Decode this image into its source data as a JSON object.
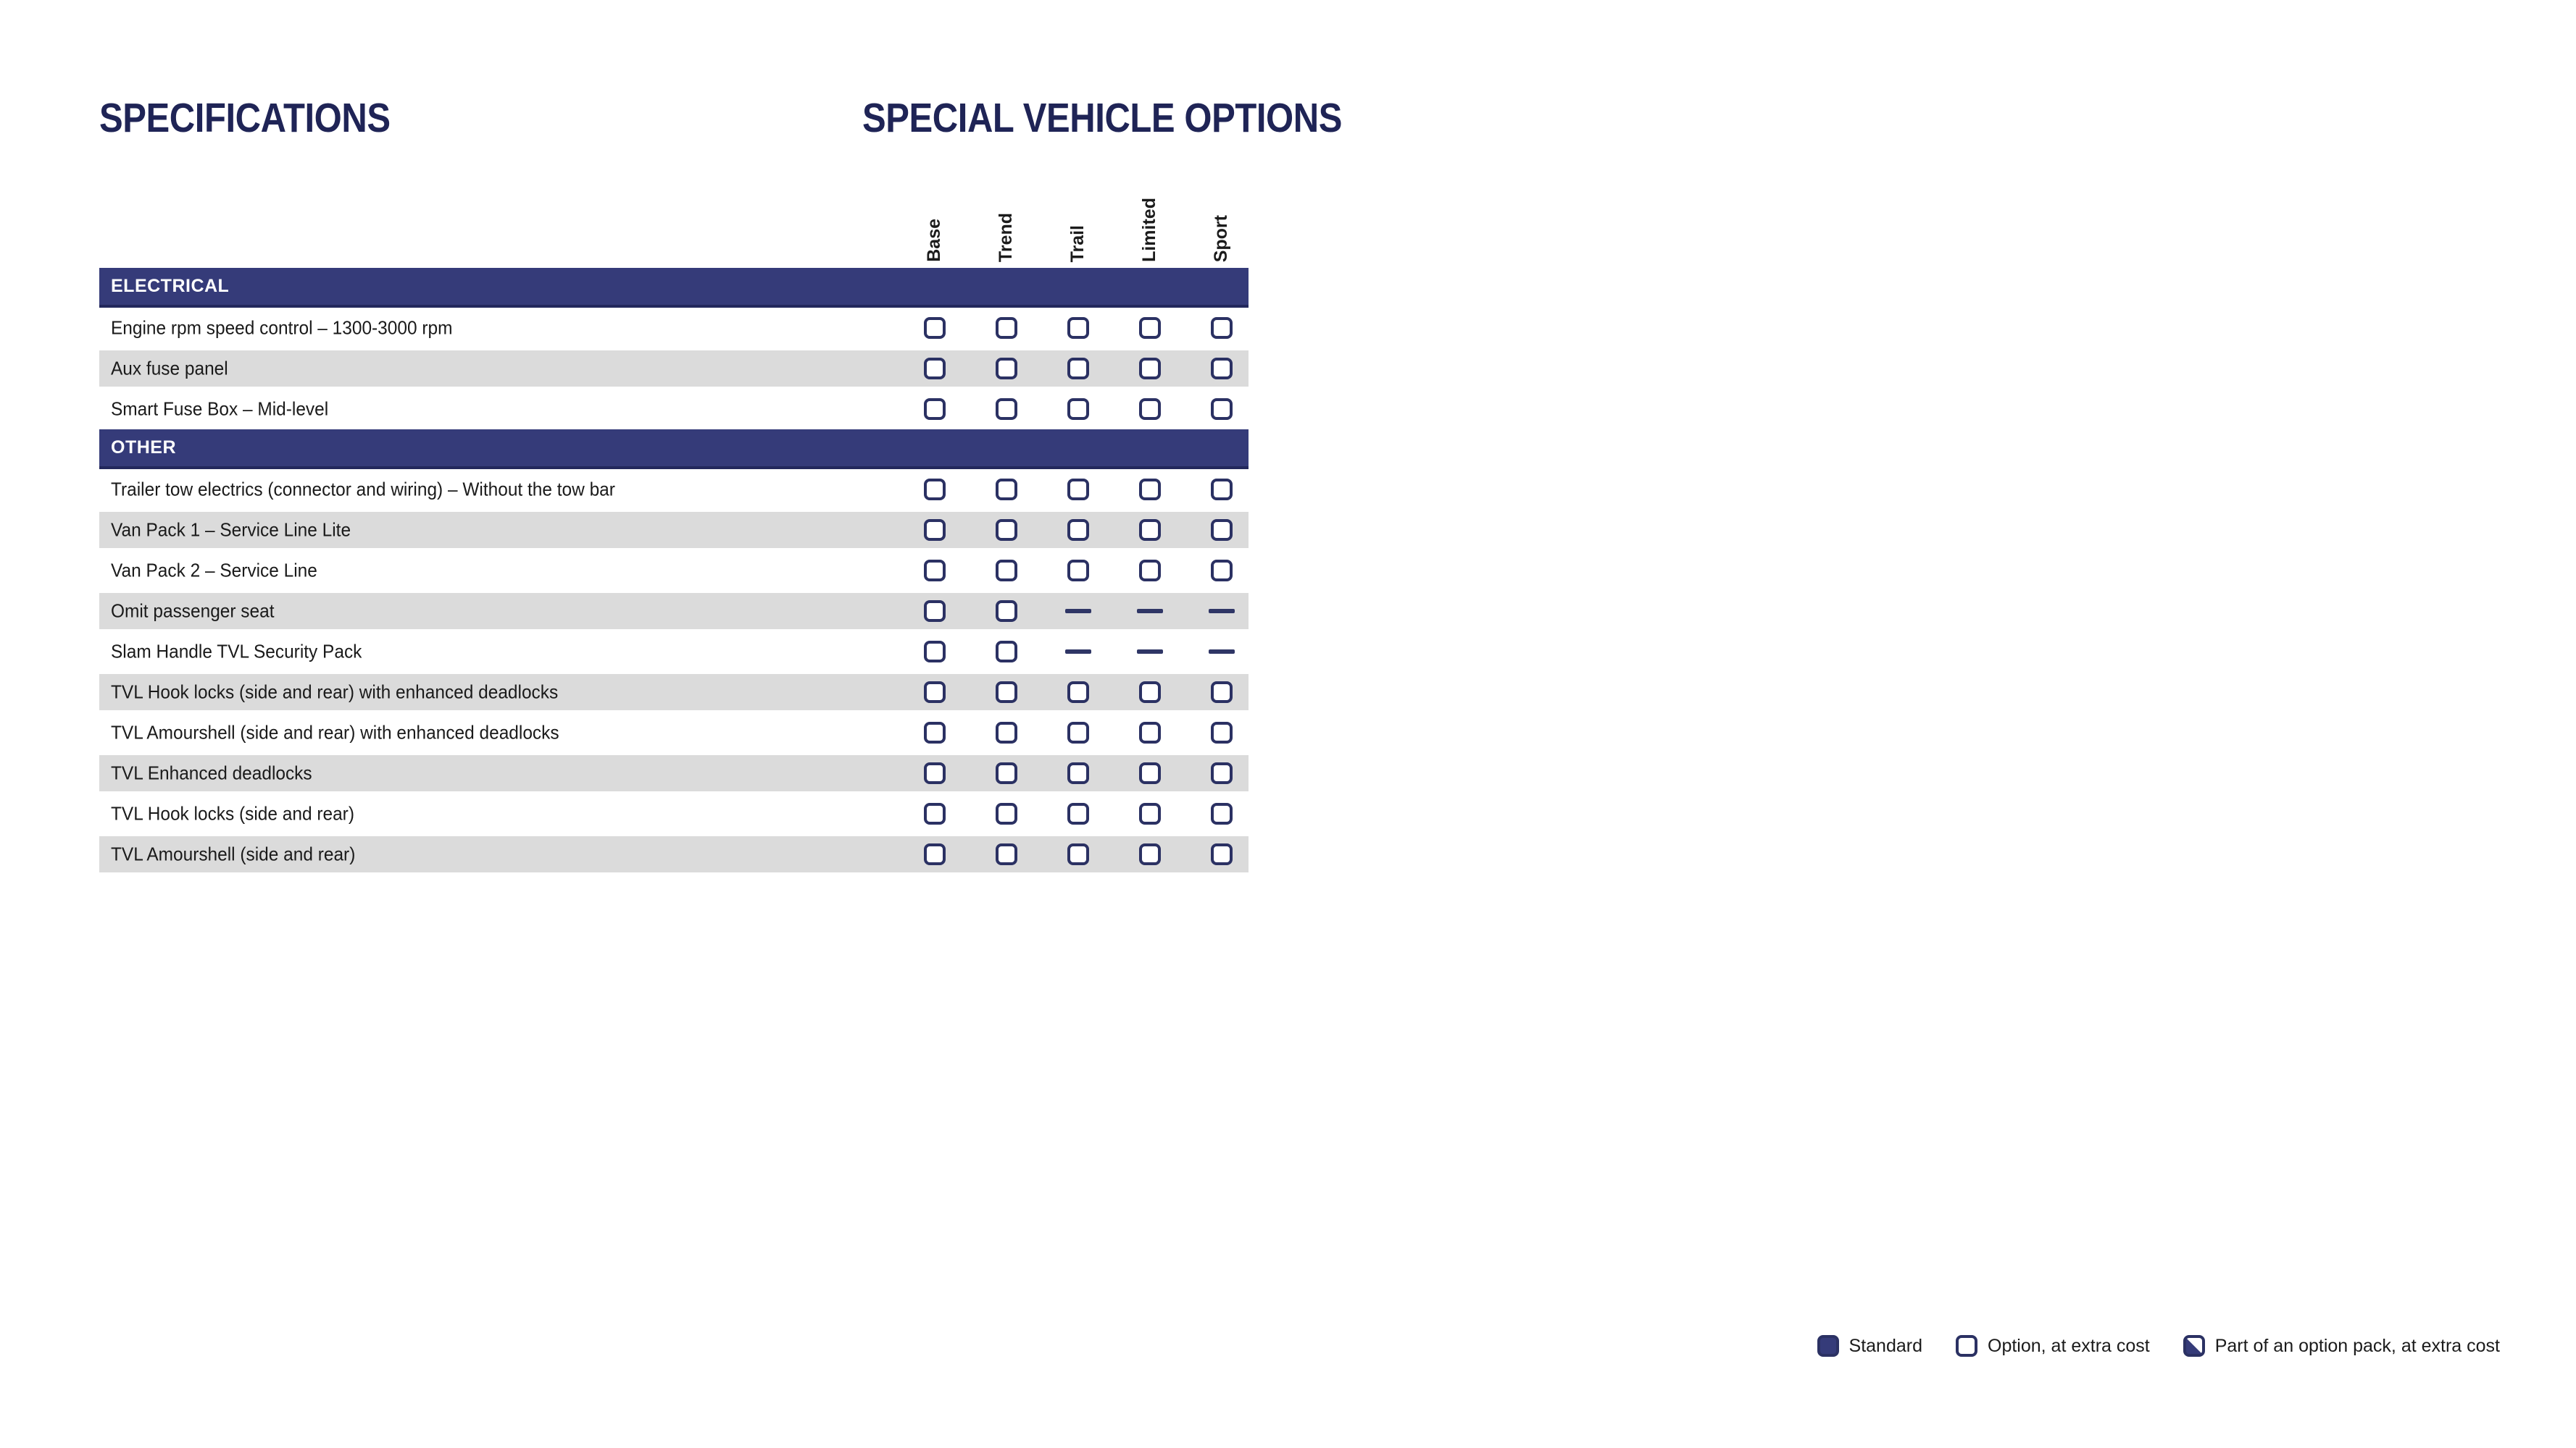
{
  "page": {
    "title_left": "SPECIFICATIONS",
    "title_right": "SPECIAL VEHICLE OPTIONS"
  },
  "table": {
    "columns": [
      "Base",
      "Trend",
      "Trail",
      "Limited",
      "Sport"
    ],
    "sections": [
      {
        "title": "ELECTRICAL",
        "rows": [
          {
            "label": "Engine rpm speed control – 1300-3000 rpm",
            "cells": [
              "option",
              "option",
              "option",
              "option",
              "option"
            ]
          },
          {
            "label": "Aux fuse panel",
            "cells": [
              "option",
              "option",
              "option",
              "option",
              "option"
            ]
          },
          {
            "label": "Smart Fuse Box – Mid-level",
            "cells": [
              "option",
              "option",
              "option",
              "option",
              "option"
            ]
          }
        ]
      },
      {
        "title": "OTHER",
        "rows": [
          {
            "label": "Trailer tow electrics (connector and wiring) – Without the tow bar",
            "cells": [
              "option",
              "option",
              "option",
              "option",
              "option"
            ]
          },
          {
            "label": "Van Pack 1 – Service Line Lite",
            "cells": [
              "option",
              "option",
              "option",
              "option",
              "option"
            ]
          },
          {
            "label": "Van Pack 2 – Service Line",
            "cells": [
              "option",
              "option",
              "option",
              "option",
              "option"
            ]
          },
          {
            "label": "Omit passenger seat",
            "cells": [
              "option",
              "option",
              "dash",
              "dash",
              "dash"
            ]
          },
          {
            "label": "Slam Handle TVL Security Pack",
            "cells": [
              "option",
              "option",
              "dash",
              "dash",
              "dash"
            ]
          },
          {
            "label": "TVL Hook locks (side and rear) with enhanced deadlocks",
            "cells": [
              "option",
              "option",
              "option",
              "option",
              "option"
            ]
          },
          {
            "label": "TVL Amourshell (side and rear) with enhanced deadlocks",
            "cells": [
              "option",
              "option",
              "option",
              "option",
              "option"
            ]
          },
          {
            "label": "TVL Enhanced deadlocks",
            "cells": [
              "option",
              "option",
              "option",
              "option",
              "option"
            ]
          },
          {
            "label": "TVL Hook locks (side and rear)",
            "cells": [
              "option",
              "option",
              "option",
              "option",
              "option"
            ]
          },
          {
            "label": "TVL Amourshell (side and rear)",
            "cells": [
              "option",
              "option",
              "option",
              "option",
              "option"
            ]
          }
        ]
      }
    ]
  },
  "legend": {
    "items": [
      {
        "type": "standard",
        "icon": "standard-filled-square-icon",
        "label": "Standard"
      },
      {
        "type": "option",
        "icon": "option-empty-checkbox-icon",
        "label": "Option, at extra cost"
      },
      {
        "type": "option_pack",
        "icon": "option-pack-half-filled-square-icon",
        "label": "Part of an option pack, at extra cost"
      }
    ]
  },
  "colors": {
    "section_bar": "#353B79",
    "section_bar_edge": "#23285C",
    "title_text": "#1F2456",
    "row_stripe": "#DBDBDB",
    "checkbox_border": "#2B3163",
    "dash": "#2F3666"
  }
}
